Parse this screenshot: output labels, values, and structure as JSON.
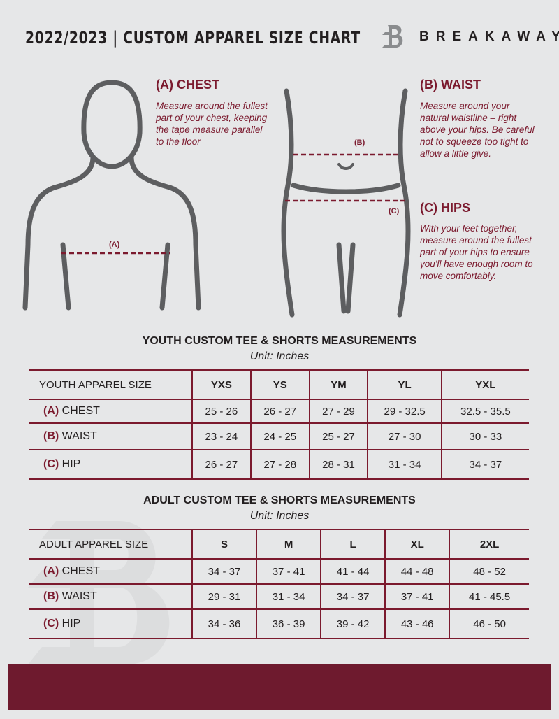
{
  "header": {
    "title": "2022/2023  |  CUSTOM APPAREL SIZE CHART",
    "brand": "BREAKAWAY",
    "logo_letter": "B"
  },
  "guide": {
    "chest": {
      "heading": "(A) CHEST",
      "text": "Measure around the fullest part of your chest, keeping the tape measure parallel to the floor",
      "marker": "(A)"
    },
    "waist": {
      "heading": "(B) WAIST",
      "text": "Measure around your natural waistline – right above your hips. Be careful not to squeeze too tight to allow a little give.",
      "marker": "(B)"
    },
    "hips": {
      "heading": "(C) HIPS",
      "text": "With your feet together, measure around the fullest part of your hips to ensure you'll have enough room to move comfortably.",
      "marker": "(C)"
    }
  },
  "youth": {
    "title": "YOUTH CUSTOM TEE & SHORTS MEASUREMENTS",
    "unit": "Unit: Inches",
    "header": [
      "YOUTH APPAREL SIZE",
      "YXS",
      "YS",
      "YM",
      "YL",
      "YXL"
    ],
    "rows": [
      {
        "letter": "(A)",
        "label": "CHEST",
        "values": [
          "25 - 26",
          "26 - 27",
          "27 - 29",
          "29 - 32.5",
          "32.5 - 35.5"
        ]
      },
      {
        "letter": "(B)",
        "label": "WAIST",
        "values": [
          "23 - 24",
          "24 - 25",
          "25 - 27",
          "27 - 30",
          "30 - 33"
        ]
      },
      {
        "letter": "(C)",
        "label": "HIP",
        "values": [
          "26 - 27",
          "27 - 28",
          "28 - 31",
          "31 - 34",
          "34 - 37"
        ]
      }
    ]
  },
  "adult": {
    "title": "ADULT CUSTOM TEE & SHORTS MEASUREMENTS",
    "unit": "Unit: Inches",
    "header": [
      "ADULT APPAREL SIZE",
      "S",
      "M",
      "L",
      "XL",
      "2XL"
    ],
    "rows": [
      {
        "letter": "(A)",
        "label": "CHEST",
        "values": [
          "34 - 37",
          "37 - 41",
          "41 - 44",
          "44 - 48",
          "48 - 52"
        ]
      },
      {
        "letter": "(B)",
        "label": "WAIST",
        "values": [
          "29 - 31",
          "31 - 34",
          "34 - 37",
          "37 - 41",
          "41 - 45.5"
        ]
      },
      {
        "letter": "(C)",
        "label": "HIP",
        "values": [
          "34 - 36",
          "36 - 39",
          "39 - 42",
          "43 - 46",
          "46 - 50"
        ]
      }
    ]
  },
  "colors": {
    "accent": "#7b1a2e",
    "background": "#e6e7e8",
    "footer": "#6e1a2e"
  }
}
